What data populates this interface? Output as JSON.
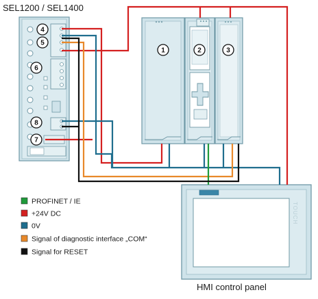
{
  "title": "SEL1200 / SEL1400",
  "hmi_label": "HMI control panel",
  "touch_label": "TOUCH",
  "colors": {
    "profinet": "#1f9a3a",
    "power24v": "#d42020",
    "zero_v": "#1f6e8e",
    "com_signal": "#e8892a",
    "reset_signal": "#111111",
    "device_fill": "#cfe3ea",
    "device_stroke": "#6f98a6"
  },
  "callouts": {
    "c1": "1",
    "c2": "2",
    "c3": "3",
    "c4": "4",
    "c5": "5",
    "c6": "6",
    "c7": "7",
    "c8": "8"
  },
  "legend": [
    {
      "key": "profinet",
      "label": "PROFINET / IE",
      "color": "#1f9a3a"
    },
    {
      "key": "power24v",
      "label": "+24V DC",
      "color": "#d42020"
    },
    {
      "key": "zero_v",
      "label": "0V",
      "color": "#1f6e8e"
    },
    {
      "key": "com_signal",
      "label": "Signal of diagnostic interface „COM“",
      "color": "#e8892a"
    },
    {
      "key": "reset_signal",
      "label": "Signal for RESET",
      "color": "#111111"
    }
  ]
}
